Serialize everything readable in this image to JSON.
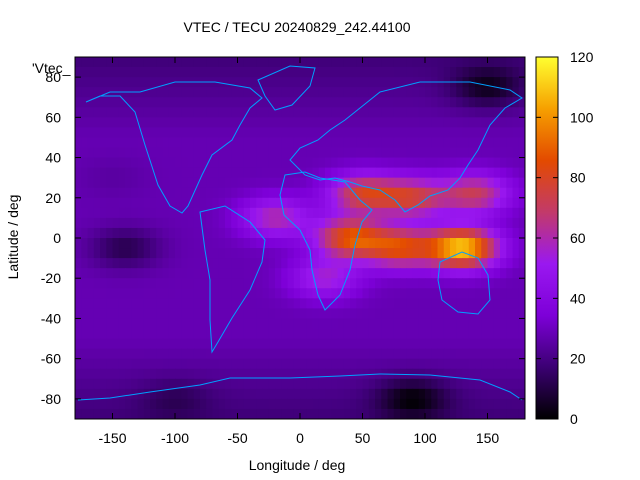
{
  "chart_data": {
    "type": "heatmap",
    "title": "VTEC / TECU 20240829_242.44100",
    "xlabel": "Longitude / deg",
    "ylabel": "Latitude / deg",
    "xlim": [
      -180,
      180
    ],
    "ylim": [
      -90,
      90
    ],
    "x_ticks": [
      -150,
      -100,
      -50,
      0,
      50,
      100,
      150
    ],
    "y_ticks": [
      -80,
      -60,
      -40,
      -20,
      0,
      20,
      40,
      60,
      80
    ],
    "colorbar": {
      "range": [
        0,
        120
      ],
      "ticks": [
        0,
        20,
        40,
        60,
        80,
        100,
        120
      ],
      "colormap": [
        "#000000",
        "#3b0072",
        "#7d00d8",
        "#9a18f0",
        "#c23a6a",
        "#e34a00",
        "#f6a000",
        "#ffff30"
      ]
    },
    "legend_key": "'Vtec_",
    "coastline_color": "#00a0ff",
    "grid": false,
    "features": [
      {
        "lon": 50,
        "lat": 22,
        "value": 75
      },
      {
        "lon": 90,
        "lat": 20,
        "value": 72
      },
      {
        "lon": 140,
        "lat": 22,
        "value": 70
      },
      {
        "lon": 40,
        "lat": 0,
        "value": 85
      },
      {
        "lon": 130,
        "lat": -5,
        "value": 110
      },
      {
        "lon": 80,
        "lat": -5,
        "value": 80
      },
      {
        "lon": 20,
        "lat": -20,
        "value": 55
      },
      {
        "lon": -20,
        "lat": 10,
        "value": 60
      },
      {
        "lon": -150,
        "lat": 30,
        "value": 25
      },
      {
        "lon": -140,
        "lat": -5,
        "value": 12
      },
      {
        "lon": -100,
        "lat": -80,
        "value": 20
      },
      {
        "lon": 90,
        "lat": -80,
        "value": 8
      },
      {
        "lon": 150,
        "lat": 75,
        "value": 10
      }
    ]
  }
}
